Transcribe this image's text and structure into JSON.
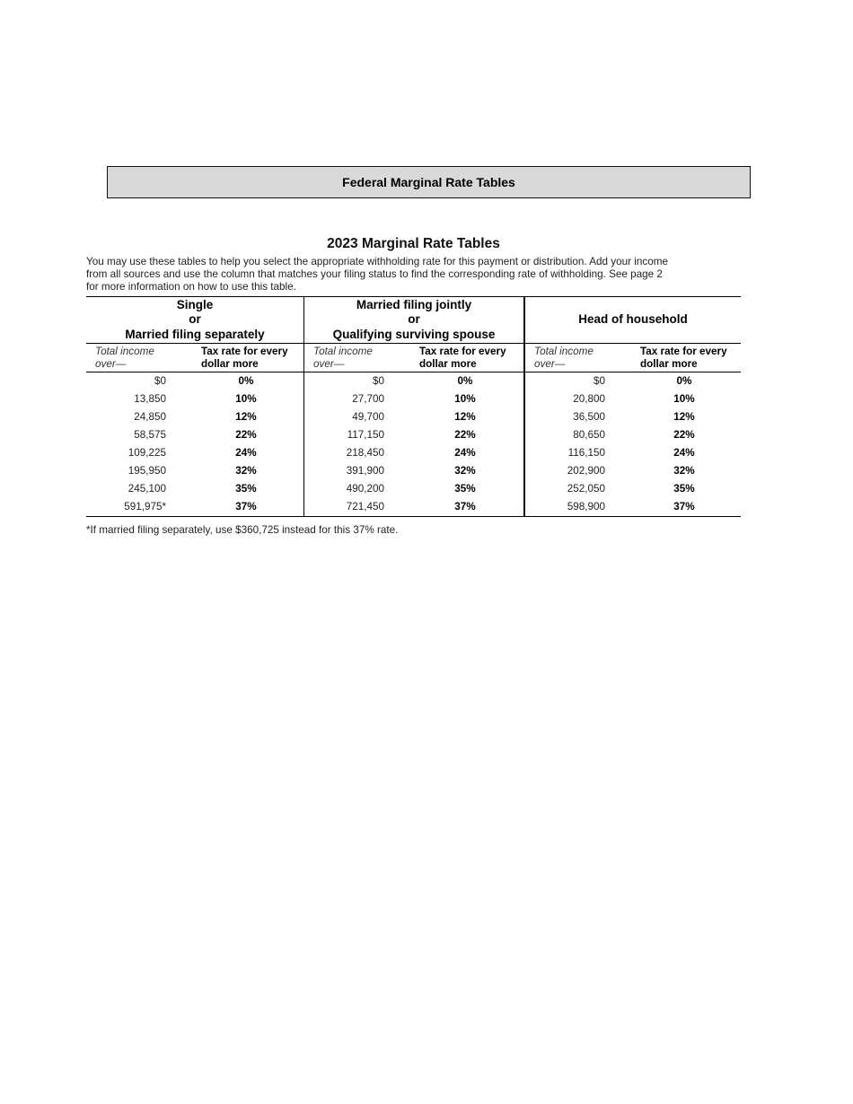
{
  "banner": {
    "title": "Federal Marginal Rate Tables"
  },
  "doc": {
    "title": "2023 Marginal Rate Tables",
    "intro_lines": [
      "You may use these tables to help you select the appropriate withholding rate for this payment or distribution. Add your income",
      "from all sources and use the column that matches your filing status to find the corresponding rate of withholding. See page 2",
      "for more information on how to use this table."
    ],
    "footnote": "*If married filing separately, use $360,725 instead for this 37% rate."
  },
  "table": {
    "subheader": {
      "income_lines": [
        "Total income",
        "over—"
      ],
      "rate_lines": [
        "Tax rate for every",
        "dollar more"
      ]
    },
    "groups": [
      {
        "header_lines": [
          "Single",
          "or",
          "Married filing separately"
        ],
        "rows": [
          {
            "income": "$0",
            "rate": "0%"
          },
          {
            "income": "13,850",
            "rate": "10%"
          },
          {
            "income": "24,850",
            "rate": "12%"
          },
          {
            "income": "58,575",
            "rate": "22%"
          },
          {
            "income": "109,225",
            "rate": "24%"
          },
          {
            "income": "195,950",
            "rate": "32%"
          },
          {
            "income": "245,100",
            "rate": "35%"
          },
          {
            "income": "591,975*",
            "rate": "37%"
          }
        ]
      },
      {
        "header_lines": [
          "Married filing jointly",
          "or",
          "Qualifying surviving spouse"
        ],
        "rows": [
          {
            "income": "$0",
            "rate": "0%"
          },
          {
            "income": "27,700",
            "rate": "10%"
          },
          {
            "income": "49,700",
            "rate": "12%"
          },
          {
            "income": "117,150",
            "rate": "22%"
          },
          {
            "income": "218,450",
            "rate": "24%"
          },
          {
            "income": "391,900",
            "rate": "32%"
          },
          {
            "income": "490,200",
            "rate": "35%"
          },
          {
            "income": "721,450",
            "rate": "37%"
          }
        ]
      },
      {
        "header_lines": [
          "Head of household"
        ],
        "rows": [
          {
            "income": "$0",
            "rate": "0%"
          },
          {
            "income": "20,800",
            "rate": "10%"
          },
          {
            "income": "36,500",
            "rate": "12%"
          },
          {
            "income": "80,650",
            "rate": "22%"
          },
          {
            "income": "116,150",
            "rate": "24%"
          },
          {
            "income": "202,900",
            "rate": "32%"
          },
          {
            "income": "252,050",
            "rate": "35%"
          },
          {
            "income": "598,900",
            "rate": "37%"
          }
        ]
      }
    ]
  },
  "colors": {
    "banner_bg": "#d9d9d9",
    "rule": "#000000",
    "text": "#1a1a1a"
  }
}
